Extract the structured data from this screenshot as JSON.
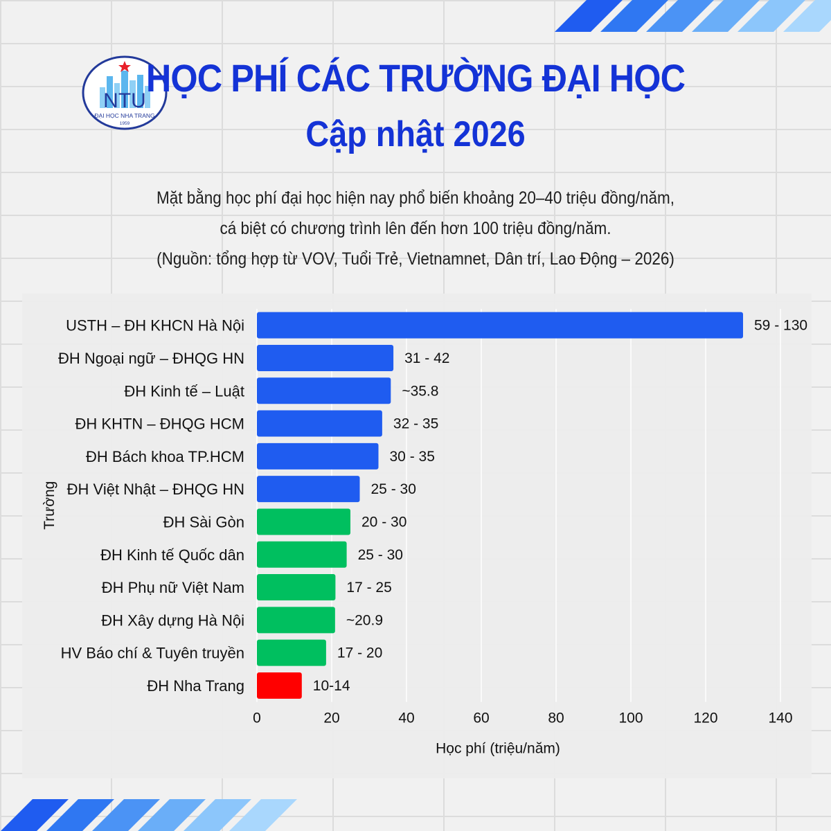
{
  "header": {
    "title": "HỌC PHÍ CÁC TRƯỜNG ĐẠI HỌC",
    "subtitle": "Cập nhật 2026"
  },
  "logo": {
    "text": "NTU",
    "caption": "ĐẠI HỌC NHA TRANG",
    "year": "1959"
  },
  "description": {
    "line1": "Mặt bằng học phí đại học hiện nay phổ biến khoảng 20–40 triệu đồng/năm,",
    "line2": "cá biệt có chương trình lên đến hơn 100 triệu đồng/năm.",
    "line3": "(Nguồn: tổng hợp từ VOV, Tuổi Trẻ, Vietnamnet, Dân trí, Lao Động – 2026)"
  },
  "colors": {
    "blue": "#1f5cf0",
    "green": "#00bf5f",
    "red": "#ff0000",
    "title": "#1433d6"
  },
  "chart_data": {
    "type": "bar",
    "orientation": "horizontal",
    "xlabel": "Học phí (triệu/năm)",
    "ylabel": "Trường",
    "xlim": [
      0,
      140
    ],
    "xticks": [
      0,
      20,
      40,
      60,
      80,
      100,
      120,
      140
    ],
    "grid": true,
    "categories": [
      "USTH – ĐH KHCN Hà Nội",
      "ĐH Ngoại ngữ – ĐHQG HN",
      "ĐH Kinh tế – Luật",
      "ĐH KHTN – ĐHQG HCM",
      "ĐH Bách khoa TP.HCM",
      "ĐH Việt Nhật – ĐHQG HN",
      "ĐH Sài Gòn",
      "ĐH Kinh tế Quốc dân",
      "ĐH Phụ nữ Việt Nam",
      "ĐH Xây dựng Hà Nội",
      "HV Báo chí & Tuyên truyền",
      "ĐH Nha Trang"
    ],
    "values": [
      130,
      36.5,
      35.8,
      33.5,
      32.5,
      27.5,
      25,
      24,
      21,
      20.9,
      18.5,
      12
    ],
    "value_labels": [
      "59 - 130",
      "31 - 42",
      "~35.8",
      "32 - 35",
      "30 - 35",
      "25 - 30",
      "20 - 30",
      "25 - 30",
      "17 - 25",
      "~20.9",
      "17 - 20",
      "10-14"
    ],
    "bar_colors": [
      "blue",
      "blue",
      "blue",
      "blue",
      "blue",
      "blue",
      "green",
      "green",
      "green",
      "green",
      "green",
      "red"
    ]
  }
}
